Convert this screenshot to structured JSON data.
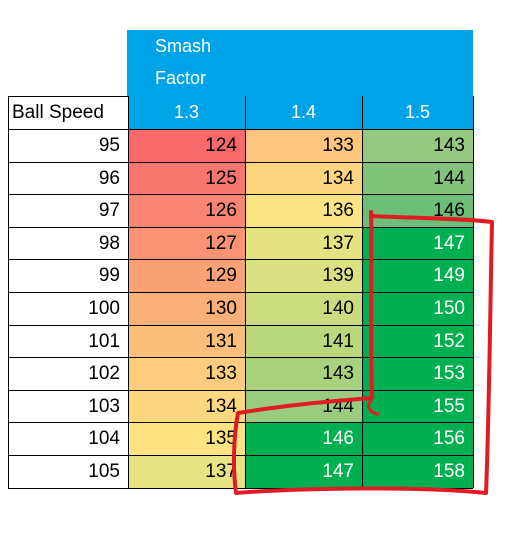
{
  "header": {
    "title_line1": "Smash",
    "title_line2": "Factor",
    "row_header": "Ball Speed",
    "columns": [
      "1.3",
      "1.4",
      "1.5"
    ]
  },
  "rows": [
    {
      "speed": "95",
      "v": [
        "124",
        "133",
        "143"
      ]
    },
    {
      "speed": "96",
      "v": [
        "125",
        "134",
        "144"
      ]
    },
    {
      "speed": "97",
      "v": [
        "126",
        "136",
        "146"
      ]
    },
    {
      "speed": "98",
      "v": [
        "127",
        "137",
        "147"
      ]
    },
    {
      "speed": "99",
      "v": [
        "129",
        "139",
        "149"
      ]
    },
    {
      "speed": "100",
      "v": [
        "130",
        "140",
        "150"
      ]
    },
    {
      "speed": "101",
      "v": [
        "131",
        "141",
        "152"
      ]
    },
    {
      "speed": "102",
      "v": [
        "133",
        "143",
        "153"
      ]
    },
    {
      "speed": "103",
      "v": [
        "134",
        "144",
        "155"
      ]
    },
    {
      "speed": "104",
      "v": [
        "135",
        "146",
        "156"
      ]
    },
    {
      "speed": "105",
      "v": [
        "137",
        "147",
        "158"
      ]
    }
  ],
  "cell_colors": [
    [
      "#f8696b",
      "#fdc57d",
      "#96c97f"
    ],
    [
      "#f8766e",
      "#fed680",
      "#82c37c"
    ],
    [
      "#f88572",
      "#fbe483",
      "#6cbe78"
    ],
    [
      "#f99373",
      "#e5e282",
      "#00b050"
    ],
    [
      "#faa276",
      "#d9e081",
      "#00b050"
    ],
    [
      "#fbb079",
      "#cadc7f",
      "#00b050"
    ],
    [
      "#fcbe7b",
      "#bbd87e",
      "#00b050"
    ],
    [
      "#fdcc7e",
      "#a9d27f",
      "#00b050"
    ],
    [
      "#fed880",
      "#9acc7d",
      "#00b050"
    ],
    [
      "#fee382",
      "#00b050",
      "#00b050"
    ],
    [
      "#e7e583",
      "#00b050",
      "#00b050"
    ]
  ],
  "markup_color": "#e01b24"
}
